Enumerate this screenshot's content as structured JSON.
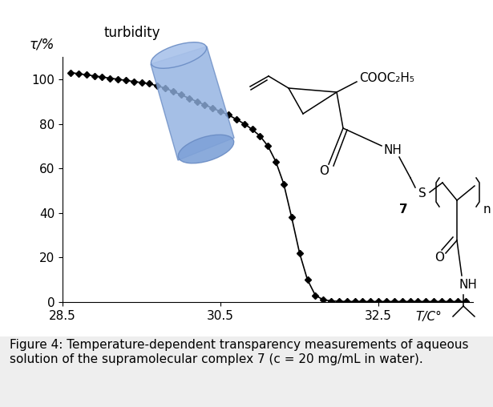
{
  "chart_data": {
    "type": "line",
    "title": "turbidity",
    "x_label": "T/C°",
    "y_label": "τ/%",
    "x": [
      28.6,
      28.7,
      28.8,
      28.9,
      29.0,
      29.1,
      29.2,
      29.3,
      29.4,
      29.5,
      29.6,
      29.7,
      29.8,
      29.9,
      30.0,
      30.1,
      30.2,
      30.3,
      30.4,
      30.5,
      30.6,
      30.7,
      30.8,
      30.9,
      31.0,
      31.1,
      31.2,
      31.3,
      31.4,
      31.5,
      31.6,
      31.7,
      31.8,
      31.9,
      32.0,
      32.1,
      32.2,
      32.3,
      32.4,
      32.5,
      32.6,
      32.7,
      32.8,
      32.9,
      33.0,
      33.1,
      33.2,
      33.3,
      33.4,
      33.5,
      33.6
    ],
    "values": [
      103,
      102.5,
      102,
      101.5,
      101,
      100.5,
      100,
      99.5,
      99,
      98.5,
      98,
      97,
      96,
      94.5,
      93,
      91.5,
      90,
      88.5,
      87,
      85.5,
      84,
      82,
      80,
      77.5,
      74.5,
      70,
      63,
      53,
      38,
      22,
      10,
      3,
      1,
      0.5,
      0.3,
      0.2,
      0.2,
      0.2,
      0.2,
      0.2,
      0.2,
      0.2,
      0.2,
      0.2,
      0.2,
      0.2,
      0.2,
      0.2,
      0.2,
      0.2,
      0.2
    ],
    "color": "#000000",
    "marker": "D",
    "line_style": "solid",
    "xlim": [
      28.5,
      33.7
    ],
    "xticks": [
      28.5,
      30.5,
      32.5
    ],
    "ylim": [
      0,
      110
    ],
    "yticks": [
      0,
      20,
      40,
      60,
      80,
      100
    ],
    "grid": false,
    "annotations": [
      "COOC₂H₅",
      "NH",
      "O",
      "S",
      "7",
      "O",
      "NH",
      "n"
    ],
    "caption": "Figure 4: Temperature-dependent transparency measurements of aqueous solution of the supramolecular complex 7 (c = 20 mg/mL in water)."
  }
}
